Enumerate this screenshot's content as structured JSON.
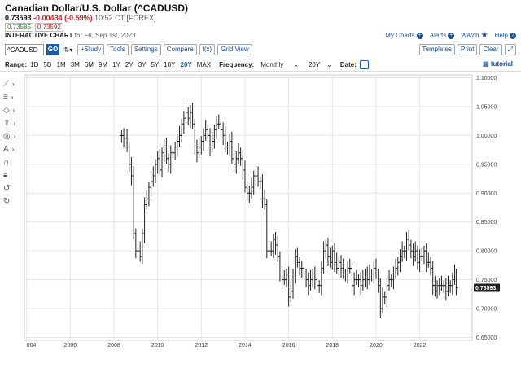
{
  "header": {
    "title": "Canadian Dollar/U.S. Dollar (^CADUSD)",
    "last": "0.73593",
    "change": "-0.00434 (-0.59%)",
    "timestamp": "10:52 CT [FOREX]",
    "bid": "0.73585",
    "ask": "0.73592",
    "chart_label": "INTERACTIVE CHART",
    "chart_date": "for Fri, Sep 1st, 2023"
  },
  "toplinks": {
    "my_charts": "My Charts",
    "alerts": "Alerts",
    "watch": "Watch",
    "help": "Help"
  },
  "toolbar": {
    "symbol": "^CADUSD",
    "go": "GO",
    "study": "+Study",
    "tools": "Tools",
    "settings": "Settings",
    "compare": "Compare",
    "fx": "f(x)",
    "grid_view": "Grid View",
    "templates": "Templates",
    "print": "Print",
    "clear": "Clear",
    "expand": "⤢"
  },
  "range_bar": {
    "range_label": "Range:",
    "ranges": [
      "1D",
      "5D",
      "1M",
      "3M",
      "6M",
      "9M",
      "1Y",
      "2Y",
      "3Y",
      "5Y",
      "10Y",
      "20Y",
      "MAX"
    ],
    "active_range": "20Y",
    "frequency_label": "Frequency:",
    "frequency": "Monthly",
    "period": "20Y",
    "date_label": "Date:",
    "tutorial": "tutorial"
  },
  "chart_data": {
    "type": "ohlc-bar",
    "frequency": "monthly",
    "x_ticks": [
      "004",
      "2006",
      "2008",
      "2010",
      "2012",
      "2014",
      "2016",
      "2018",
      "2020",
      "2022"
    ],
    "y_ticks": [
      "1.10000",
      "1.05000",
      "1.00000",
      "0.95000",
      "0.90000",
      "0.85000",
      "0.80000",
      "0.75000",
      "0.70000",
      "0.65000"
    ],
    "ylim": [
      0.645,
      1.105
    ],
    "last_value_label": "0.73593",
    "series": [
      {
        "name": "^CADUSD",
        "points": [
          [
            2008.35,
            1.0
          ],
          [
            2008.45,
            0.995
          ],
          [
            2008.6,
            0.98
          ],
          [
            2008.7,
            0.95
          ],
          [
            2008.8,
            0.93
          ],
          [
            2008.9,
            0.83
          ],
          [
            2009.0,
            0.8
          ],
          [
            2009.1,
            0.8
          ],
          [
            2009.2,
            0.79
          ],
          [
            2009.3,
            0.83
          ],
          [
            2009.4,
            0.88
          ],
          [
            2009.5,
            0.89
          ],
          [
            2009.6,
            0.91
          ],
          [
            2009.7,
            0.92
          ],
          [
            2009.8,
            0.93
          ],
          [
            2009.9,
            0.95
          ],
          [
            2010.0,
            0.96
          ],
          [
            2010.1,
            0.94
          ],
          [
            2010.2,
            0.97
          ],
          [
            2010.3,
            0.98
          ],
          [
            2010.4,
            0.96
          ],
          [
            2010.5,
            0.95
          ],
          [
            2010.6,
            0.97
          ],
          [
            2010.7,
            0.97
          ],
          [
            2010.8,
            0.98
          ],
          [
            2010.9,
            0.99
          ],
          [
            2011.0,
            1.0
          ],
          [
            2011.1,
            1.02
          ],
          [
            2011.2,
            1.03
          ],
          [
            2011.3,
            1.04
          ],
          [
            2011.4,
            1.03
          ],
          [
            2011.5,
            1.04
          ],
          [
            2011.6,
            1.02
          ],
          [
            2011.7,
            0.98
          ],
          [
            2011.8,
            0.97
          ],
          [
            2011.9,
            0.98
          ],
          [
            2012.0,
            0.99
          ],
          [
            2012.1,
            1.0
          ],
          [
            2012.2,
            1.01
          ],
          [
            2012.3,
            1.0
          ],
          [
            2012.4,
            0.98
          ],
          [
            2012.5,
            0.99
          ],
          [
            2012.6,
            1.01
          ],
          [
            2012.7,
            1.02
          ],
          [
            2012.8,
            1.02
          ],
          [
            2012.9,
            1.01
          ],
          [
            2013.0,
            1.0
          ],
          [
            2013.1,
            0.98
          ],
          [
            2013.2,
            0.98
          ],
          [
            2013.3,
            0.99
          ],
          [
            2013.4,
            0.96
          ],
          [
            2013.5,
            0.95
          ],
          [
            2013.6,
            0.96
          ],
          [
            2013.7,
            0.97
          ],
          [
            2013.8,
            0.96
          ],
          [
            2013.9,
            0.94
          ],
          [
            2014.0,
            0.91
          ],
          [
            2014.1,
            0.9
          ],
          [
            2014.2,
            0.9
          ],
          [
            2014.3,
            0.91
          ],
          [
            2014.4,
            0.93
          ],
          [
            2014.5,
            0.93
          ],
          [
            2014.6,
            0.92
          ],
          [
            2014.7,
            0.92
          ],
          [
            2014.8,
            0.89
          ],
          [
            2014.9,
            0.88
          ],
          [
            2015.0,
            0.8
          ],
          [
            2015.1,
            0.8
          ],
          [
            2015.2,
            0.8
          ],
          [
            2015.3,
            0.82
          ],
          [
            2015.4,
            0.81
          ],
          [
            2015.5,
            0.79
          ],
          [
            2015.6,
            0.76
          ],
          [
            2015.7,
            0.75
          ],
          [
            2015.8,
            0.75
          ],
          [
            2015.9,
            0.76
          ],
          [
            2016.0,
            0.72
          ],
          [
            2016.1,
            0.73
          ],
          [
            2016.2,
            0.76
          ],
          [
            2016.3,
            0.79
          ],
          [
            2016.4,
            0.78
          ],
          [
            2016.5,
            0.77
          ],
          [
            2016.6,
            0.77
          ],
          [
            2016.7,
            0.76
          ],
          [
            2016.8,
            0.75
          ],
          [
            2016.9,
            0.74
          ],
          [
            2017.0,
            0.75
          ],
          [
            2017.1,
            0.76
          ],
          [
            2017.2,
            0.75
          ],
          [
            2017.3,
            0.74
          ],
          [
            2017.4,
            0.74
          ],
          [
            2017.5,
            0.77
          ],
          [
            2017.6,
            0.8
          ],
          [
            2017.7,
            0.81
          ],
          [
            2017.8,
            0.79
          ],
          [
            2017.9,
            0.78
          ],
          [
            2018.0,
            0.8
          ],
          [
            2018.1,
            0.78
          ],
          [
            2018.2,
            0.77
          ],
          [
            2018.3,
            0.78
          ],
          [
            2018.4,
            0.77
          ],
          [
            2018.5,
            0.76
          ],
          [
            2018.6,
            0.76
          ],
          [
            2018.7,
            0.77
          ],
          [
            2018.8,
            0.77
          ],
          [
            2018.9,
            0.74
          ],
          [
            2019.0,
            0.75
          ],
          [
            2019.1,
            0.75
          ],
          [
            2019.2,
            0.75
          ],
          [
            2019.3,
            0.74
          ],
          [
            2019.4,
            0.75
          ],
          [
            2019.5,
            0.76
          ],
          [
            2019.6,
            0.75
          ],
          [
            2019.7,
            0.76
          ],
          [
            2019.8,
            0.76
          ],
          [
            2019.9,
            0.77
          ],
          [
            2020.0,
            0.76
          ],
          [
            2020.1,
            0.74
          ],
          [
            2020.2,
            0.7
          ],
          [
            2020.3,
            0.72
          ],
          [
            2020.4,
            0.72
          ],
          [
            2020.5,
            0.74
          ],
          [
            2020.6,
            0.75
          ],
          [
            2020.7,
            0.75
          ],
          [
            2020.8,
            0.76
          ],
          [
            2020.9,
            0.77
          ],
          [
            2021.0,
            0.78
          ],
          [
            2021.1,
            0.79
          ],
          [
            2021.2,
            0.8
          ],
          [
            2021.3,
            0.8
          ],
          [
            2021.4,
            0.82
          ],
          [
            2021.5,
            0.81
          ],
          [
            2021.6,
            0.8
          ],
          [
            2021.7,
            0.79
          ],
          [
            2021.8,
            0.8
          ],
          [
            2021.9,
            0.78
          ],
          [
            2022.0,
            0.79
          ],
          [
            2022.1,
            0.79
          ],
          [
            2022.2,
            0.8
          ],
          [
            2022.3,
            0.78
          ],
          [
            2022.4,
            0.78
          ],
          [
            2022.5,
            0.77
          ],
          [
            2022.6,
            0.74
          ],
          [
            2022.7,
            0.73
          ],
          [
            2022.8,
            0.74
          ],
          [
            2022.9,
            0.74
          ],
          [
            2023.0,
            0.74
          ],
          [
            2023.1,
            0.74
          ],
          [
            2023.2,
            0.73
          ],
          [
            2023.3,
            0.74
          ],
          [
            2023.4,
            0.74
          ],
          [
            2023.5,
            0.75
          ],
          [
            2023.6,
            0.76
          ],
          [
            2023.67,
            0.736
          ]
        ]
      }
    ],
    "bar_half_range": 0.015,
    "xlim": [
      2003.9,
      2024.4
    ],
    "grid": true
  }
}
